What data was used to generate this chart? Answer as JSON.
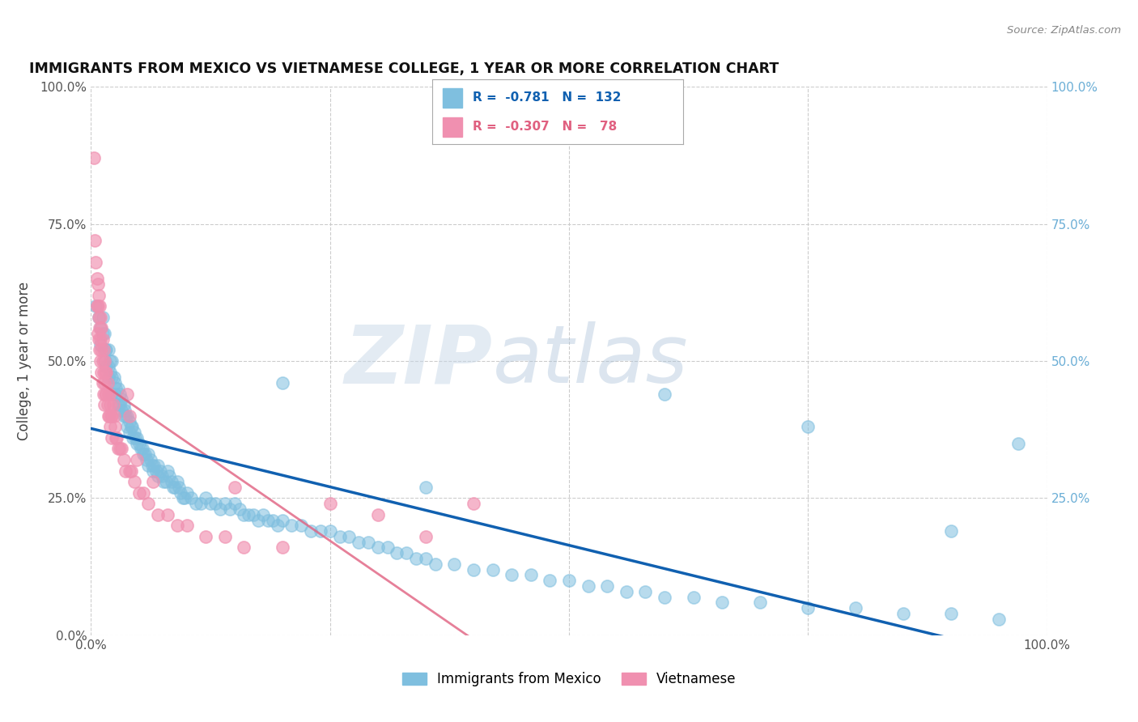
{
  "title": "IMMIGRANTS FROM MEXICO VS VIETNAMESE COLLEGE, 1 YEAR OR MORE CORRELATION CHART",
  "source_text": "Source: ZipAtlas.com",
  "ylabel": "College, 1 year or more",
  "xlim": [
    0.0,
    1.0
  ],
  "ylim": [
    0.0,
    1.0
  ],
  "y_tick_positions": [
    0.0,
    0.25,
    0.5,
    0.75,
    1.0
  ],
  "legend_label_mexico": "Immigrants from Mexico",
  "legend_label_vietnamese": "Vietnamese",
  "mexico_color": "#7fbfdf",
  "vietnamese_color": "#f090b0",
  "trendline_mexico_color": "#1060b0",
  "trendline_vietnamese_color": "#e06080",
  "right_y_color": "#6baed6",
  "watermark_zip": "ZIP",
  "watermark_atlas": "atlas",
  "background_color": "#ffffff",
  "grid_color": "#cccccc",
  "mexico_scatter": [
    [
      0.005,
      0.6
    ],
    [
      0.008,
      0.58
    ],
    [
      0.01,
      0.56
    ],
    [
      0.01,
      0.53
    ],
    [
      0.012,
      0.58
    ],
    [
      0.012,
      0.55
    ],
    [
      0.014,
      0.55
    ],
    [
      0.015,
      0.52
    ],
    [
      0.015,
      0.5
    ],
    [
      0.016,
      0.52
    ],
    [
      0.016,
      0.49
    ],
    [
      0.018,
      0.52
    ],
    [
      0.018,
      0.49
    ],
    [
      0.018,
      0.47
    ],
    [
      0.02,
      0.5
    ],
    [
      0.02,
      0.48
    ],
    [
      0.022,
      0.5
    ],
    [
      0.022,
      0.47
    ],
    [
      0.022,
      0.44
    ],
    [
      0.024,
      0.47
    ],
    [
      0.025,
      0.46
    ],
    [
      0.025,
      0.44
    ],
    [
      0.026,
      0.45
    ],
    [
      0.028,
      0.45
    ],
    [
      0.028,
      0.42
    ],
    [
      0.03,
      0.44
    ],
    [
      0.03,
      0.42
    ],
    [
      0.032,
      0.43
    ],
    [
      0.032,
      0.41
    ],
    [
      0.034,
      0.42
    ],
    [
      0.034,
      0.4
    ],
    [
      0.035,
      0.41
    ],
    [
      0.036,
      0.4
    ],
    [
      0.038,
      0.4
    ],
    [
      0.038,
      0.38
    ],
    [
      0.04,
      0.39
    ],
    [
      0.04,
      0.37
    ],
    [
      0.042,
      0.38
    ],
    [
      0.043,
      0.38
    ],
    [
      0.044,
      0.36
    ],
    [
      0.045,
      0.37
    ],
    [
      0.046,
      0.36
    ],
    [
      0.048,
      0.36
    ],
    [
      0.048,
      0.35
    ],
    [
      0.05,
      0.35
    ],
    [
      0.052,
      0.34
    ],
    [
      0.054,
      0.34
    ],
    [
      0.055,
      0.33
    ],
    [
      0.056,
      0.33
    ],
    [
      0.058,
      0.32
    ],
    [
      0.06,
      0.33
    ],
    [
      0.06,
      0.31
    ],
    [
      0.062,
      0.32
    ],
    [
      0.064,
      0.31
    ],
    [
      0.065,
      0.3
    ],
    [
      0.066,
      0.31
    ],
    [
      0.068,
      0.3
    ],
    [
      0.07,
      0.31
    ],
    [
      0.07,
      0.29
    ],
    [
      0.072,
      0.3
    ],
    [
      0.074,
      0.29
    ],
    [
      0.076,
      0.28
    ],
    [
      0.078,
      0.28
    ],
    [
      0.08,
      0.3
    ],
    [
      0.082,
      0.29
    ],
    [
      0.084,
      0.28
    ],
    [
      0.086,
      0.27
    ],
    [
      0.088,
      0.27
    ],
    [
      0.09,
      0.28
    ],
    [
      0.092,
      0.27
    ],
    [
      0.094,
      0.26
    ],
    [
      0.096,
      0.25
    ],
    [
      0.098,
      0.25
    ],
    [
      0.1,
      0.26
    ],
    [
      0.105,
      0.25
    ],
    [
      0.11,
      0.24
    ],
    [
      0.115,
      0.24
    ],
    [
      0.12,
      0.25
    ],
    [
      0.125,
      0.24
    ],
    [
      0.13,
      0.24
    ],
    [
      0.135,
      0.23
    ],
    [
      0.14,
      0.24
    ],
    [
      0.145,
      0.23
    ],
    [
      0.15,
      0.24
    ],
    [
      0.155,
      0.23
    ],
    [
      0.16,
      0.22
    ],
    [
      0.165,
      0.22
    ],
    [
      0.17,
      0.22
    ],
    [
      0.175,
      0.21
    ],
    [
      0.18,
      0.22
    ],
    [
      0.185,
      0.21
    ],
    [
      0.19,
      0.21
    ],
    [
      0.195,
      0.2
    ],
    [
      0.2,
      0.21
    ],
    [
      0.21,
      0.2
    ],
    [
      0.22,
      0.2
    ],
    [
      0.23,
      0.19
    ],
    [
      0.24,
      0.19
    ],
    [
      0.25,
      0.19
    ],
    [
      0.26,
      0.18
    ],
    [
      0.27,
      0.18
    ],
    [
      0.28,
      0.17
    ],
    [
      0.29,
      0.17
    ],
    [
      0.3,
      0.16
    ],
    [
      0.31,
      0.16
    ],
    [
      0.32,
      0.15
    ],
    [
      0.33,
      0.15
    ],
    [
      0.34,
      0.14
    ],
    [
      0.35,
      0.14
    ],
    [
      0.36,
      0.13
    ],
    [
      0.38,
      0.13
    ],
    [
      0.4,
      0.12
    ],
    [
      0.42,
      0.12
    ],
    [
      0.44,
      0.11
    ],
    [
      0.46,
      0.11
    ],
    [
      0.48,
      0.1
    ],
    [
      0.5,
      0.1
    ],
    [
      0.52,
      0.09
    ],
    [
      0.54,
      0.09
    ],
    [
      0.56,
      0.08
    ],
    [
      0.58,
      0.08
    ],
    [
      0.6,
      0.07
    ],
    [
      0.63,
      0.07
    ],
    [
      0.66,
      0.06
    ],
    [
      0.7,
      0.06
    ],
    [
      0.75,
      0.05
    ],
    [
      0.8,
      0.05
    ],
    [
      0.85,
      0.04
    ],
    [
      0.9,
      0.04
    ],
    [
      0.95,
      0.03
    ],
    [
      0.2,
      0.46
    ],
    [
      0.35,
      0.27
    ],
    [
      0.6,
      0.44
    ],
    [
      0.75,
      0.38
    ],
    [
      0.9,
      0.19
    ],
    [
      0.97,
      0.35
    ]
  ],
  "vietnamese_scatter": [
    [
      0.003,
      0.87
    ],
    [
      0.004,
      0.72
    ],
    [
      0.005,
      0.68
    ],
    [
      0.006,
      0.65
    ],
    [
      0.006,
      0.6
    ],
    [
      0.007,
      0.64
    ],
    [
      0.007,
      0.6
    ],
    [
      0.007,
      0.55
    ],
    [
      0.008,
      0.62
    ],
    [
      0.008,
      0.58
    ],
    [
      0.008,
      0.54
    ],
    [
      0.009,
      0.6
    ],
    [
      0.009,
      0.56
    ],
    [
      0.009,
      0.52
    ],
    [
      0.01,
      0.58
    ],
    [
      0.01,
      0.54
    ],
    [
      0.01,
      0.5
    ],
    [
      0.011,
      0.56
    ],
    [
      0.011,
      0.52
    ],
    [
      0.011,
      0.48
    ],
    [
      0.012,
      0.54
    ],
    [
      0.012,
      0.5
    ],
    [
      0.012,
      0.46
    ],
    [
      0.013,
      0.52
    ],
    [
      0.013,
      0.48
    ],
    [
      0.013,
      0.44
    ],
    [
      0.014,
      0.5
    ],
    [
      0.014,
      0.46
    ],
    [
      0.014,
      0.42
    ],
    [
      0.015,
      0.48
    ],
    [
      0.015,
      0.44
    ],
    [
      0.016,
      0.48
    ],
    [
      0.016,
      0.44
    ],
    [
      0.017,
      0.46
    ],
    [
      0.017,
      0.42
    ],
    [
      0.018,
      0.44
    ],
    [
      0.018,
      0.4
    ],
    [
      0.019,
      0.44
    ],
    [
      0.019,
      0.4
    ],
    [
      0.02,
      0.42
    ],
    [
      0.02,
      0.38
    ],
    [
      0.021,
      0.4
    ],
    [
      0.022,
      0.4
    ],
    [
      0.022,
      0.36
    ],
    [
      0.023,
      0.42
    ],
    [
      0.024,
      0.4
    ],
    [
      0.025,
      0.38
    ],
    [
      0.026,
      0.36
    ],
    [
      0.027,
      0.36
    ],
    [
      0.028,
      0.34
    ],
    [
      0.03,
      0.34
    ],
    [
      0.032,
      0.34
    ],
    [
      0.034,
      0.32
    ],
    [
      0.036,
      0.3
    ],
    [
      0.038,
      0.44
    ],
    [
      0.04,
      0.4
    ],
    [
      0.04,
      0.3
    ],
    [
      0.042,
      0.3
    ],
    [
      0.045,
      0.28
    ],
    [
      0.048,
      0.32
    ],
    [
      0.05,
      0.26
    ],
    [
      0.055,
      0.26
    ],
    [
      0.06,
      0.24
    ],
    [
      0.065,
      0.28
    ],
    [
      0.07,
      0.22
    ],
    [
      0.08,
      0.22
    ],
    [
      0.09,
      0.2
    ],
    [
      0.1,
      0.2
    ],
    [
      0.12,
      0.18
    ],
    [
      0.14,
      0.18
    ],
    [
      0.16,
      0.16
    ],
    [
      0.2,
      0.16
    ],
    [
      0.25,
      0.24
    ],
    [
      0.3,
      0.22
    ],
    [
      0.35,
      0.18
    ],
    [
      0.4,
      0.24
    ],
    [
      0.15,
      0.27
    ]
  ]
}
